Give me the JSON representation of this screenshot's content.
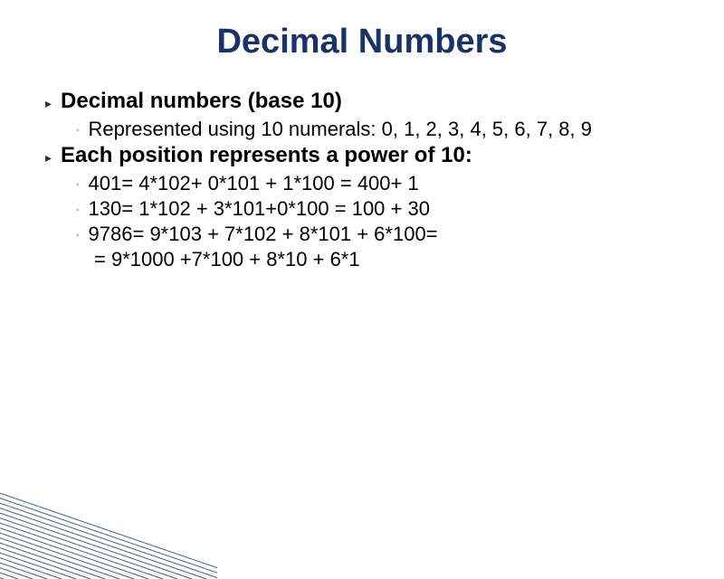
{
  "title": "Decimal Numbers",
  "title_fontsize": 38,
  "title_color": "#1a3366",
  "body_fontsize_l1": 24,
  "body_fontsize_l2": 22,
  "text_color": "#000000",
  "background_color": "#ffffff",
  "decor": {
    "line_color": "#3a5a8a",
    "line_count": 22
  },
  "bullets": [
    {
      "level": 1,
      "text": "Decimal numbers (base 10)"
    },
    {
      "level": 2,
      "text": "Represented using 10 numerals: 0, 1, 2, 3, 4, 5, 6, 7, 8, 9"
    },
    {
      "level": 1,
      "text": "Each position represents a power of 10:"
    },
    {
      "level": 2,
      "text": "401= 4*102+ 0*101 + 1*100 = 400+ 1"
    },
    {
      "level": 2,
      "text": "130= 1*102 + 3*101+0*100 = 100 + 30"
    },
    {
      "level": 2,
      "text": "9786= 9*103 + 7*102 + 8*101 + 6*100="
    },
    {
      "level": 2,
      "no_marker": true,
      "text": "= 9*1000 +7*100 + 8*10 + 6*1"
    }
  ]
}
